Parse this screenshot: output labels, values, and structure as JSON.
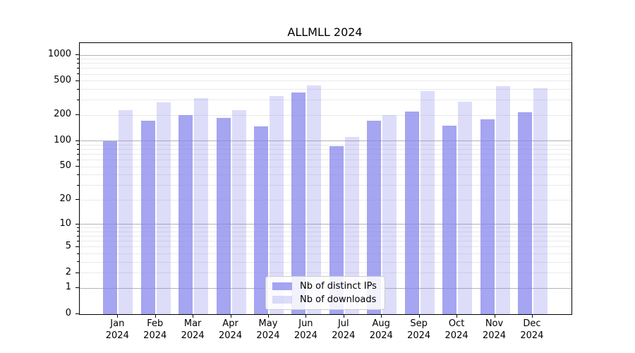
{
  "chart_data": {
    "type": "bar",
    "title": "ALLMLL 2024",
    "categories": [
      "Jan 2024",
      "Feb 2024",
      "Mar 2024",
      "Apr 2024",
      "May 2024",
      "Jun 2024",
      "Jul 2024",
      "Aug 2024",
      "Sep 2024",
      "Oct 2024",
      "Nov 2024",
      "Dec 2024"
    ],
    "series": [
      {
        "name": "Nb of distinct IPs",
        "key": "distinct-ips",
        "color": "rgba(130,130,235,0.72)",
        "values": [
          100,
          172,
          203,
          187,
          148,
          369,
          88,
          172,
          221,
          153,
          181,
          218
        ]
      },
      {
        "name": "Nb of downloads",
        "key": "downloads",
        "color": "rgba(130,130,235,0.27)",
        "values": [
          228,
          282,
          319,
          230,
          335,
          445,
          112,
          202,
          380,
          290,
          440,
          411
        ]
      }
    ],
    "xlabel": "",
    "ylabel": "",
    "yscale": "log1p",
    "ylim": [
      0,
      1380
    ],
    "y_tick_labels": [
      0,
      1,
      2,
      5,
      10,
      20,
      50,
      100,
      200,
      500,
      1000
    ],
    "y_major_gridlines": [
      1,
      10,
      100,
      1000
    ],
    "grid": true,
    "legend_position": "lower center"
  },
  "colors": {
    "bar_distinct_ips": "rgba(130,130,235,0.72)",
    "bar_downloads": "rgba(130,130,235,0.27)",
    "grid_major": "#b3b3b3",
    "grid_minor": "#eaeaea",
    "frame": "#000000",
    "legend_border": "#cccccc"
  }
}
